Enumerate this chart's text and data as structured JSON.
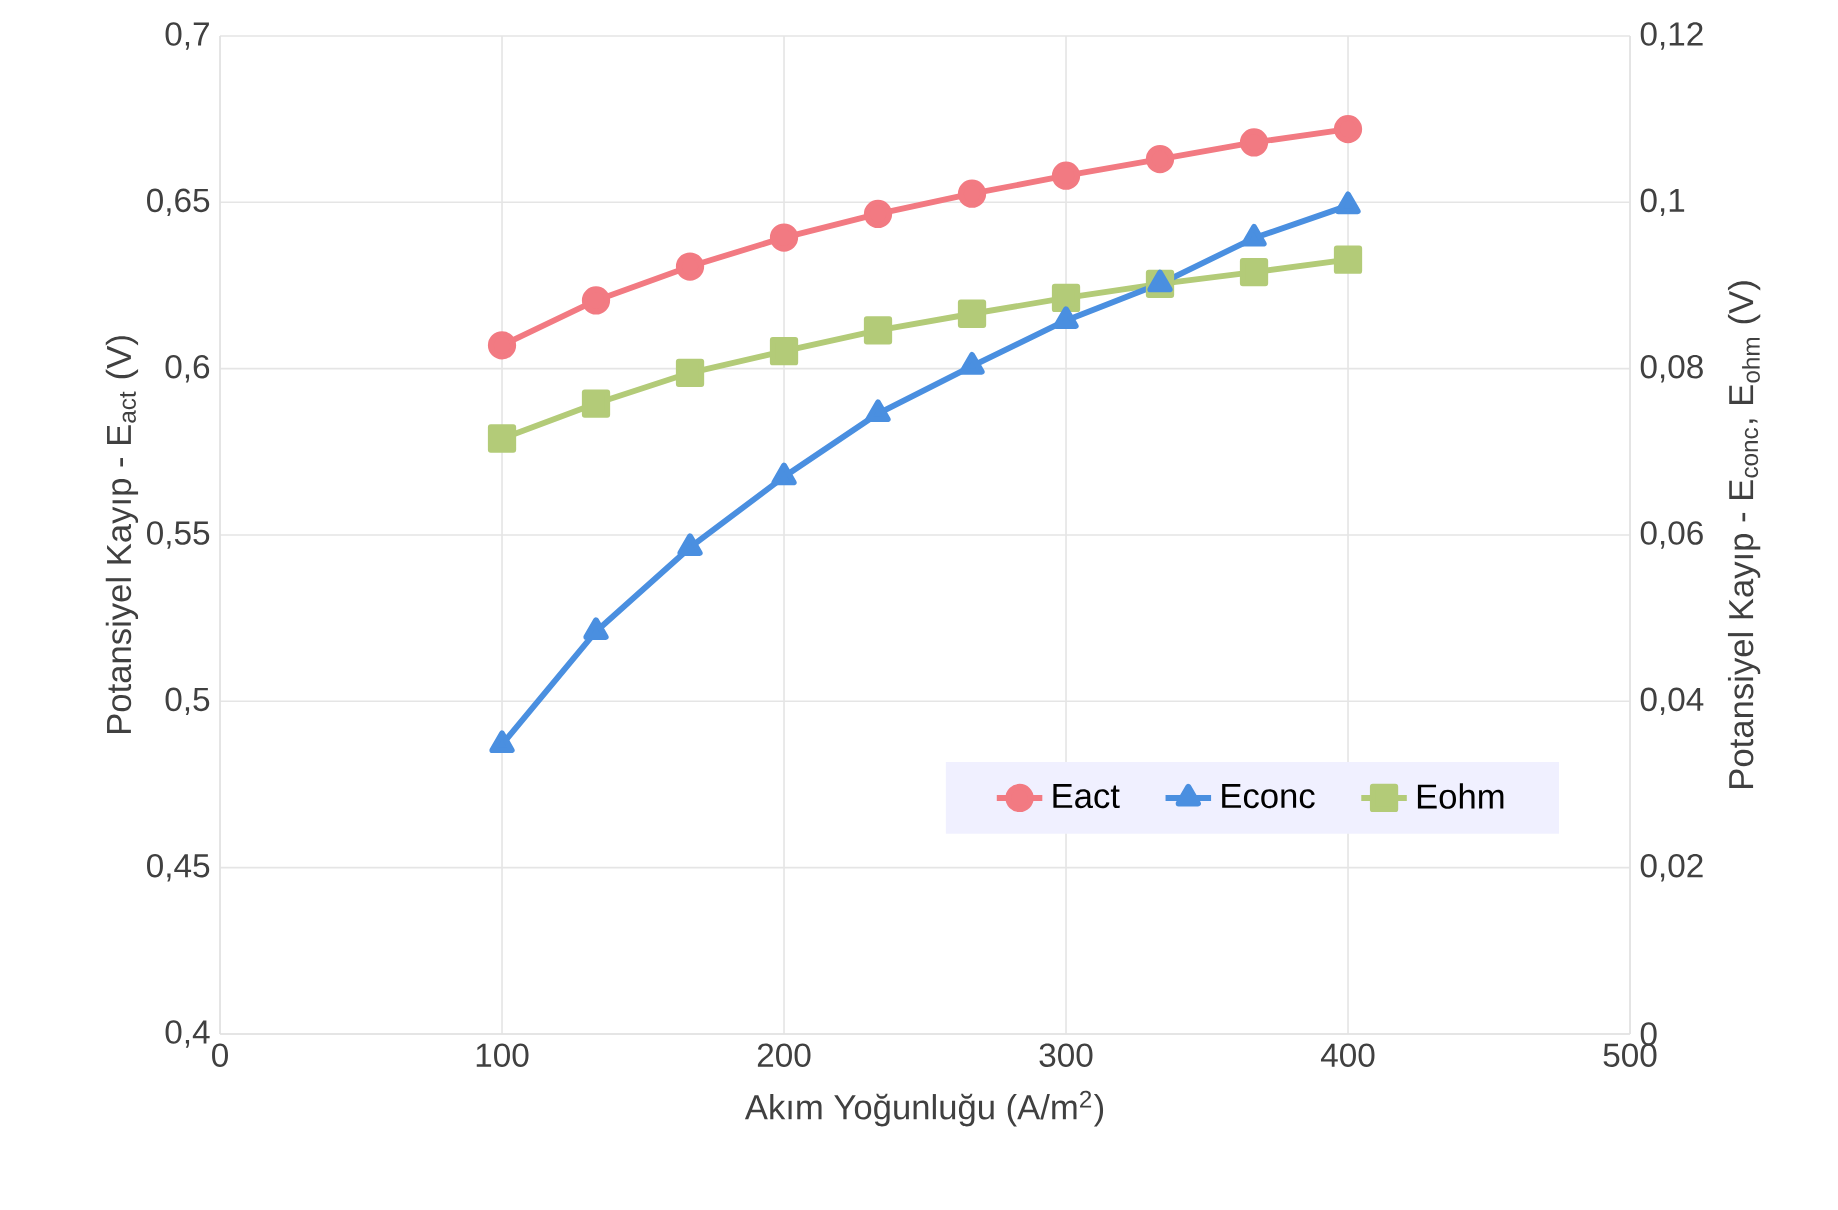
{
  "chart_data": {
    "type": "line",
    "xlabel": "Akım Yoğunluğu (A/m$^{2}$)",
    "ylabel": "Potansiyel Kayıp - E$_{act}$ (V)",
    "y2label": "Potansiyel Kayıp - E$_{conc}$, E$_{ohm}$ (V)",
    "x": [
      100,
      133.33,
      166.67,
      200,
      233.33,
      266.67,
      300,
      333.33,
      366.67,
      400
    ],
    "series": [
      {
        "name": "Eact",
        "color": "#f27a82",
        "marker": "circle",
        "values": [
          0.607,
          0.6205,
          0.6307,
          0.6394,
          0.6465,
          0.6526,
          0.658,
          0.663,
          0.668,
          0.672
        ]
      },
      {
        "name": "Econc",
        "color": "#4a8fe0",
        "marker": "triangle",
        "axis": "y2",
        "values": [
          0.0348,
          0.0484,
          0.0585,
          0.067,
          0.0746,
          0.0803,
          0.0858,
          0.0902,
          0.0957,
          0.0996
        ]
      },
      {
        "name": "Eohm",
        "color": "#b3cb78",
        "marker": "square",
        "axis": "y2",
        "values": [
          0.0716,
          0.0758,
          0.0795,
          0.0821,
          0.0846,
          0.0866,
          0.0885,
          0.0902,
          0.0916,
          0.0931
        ]
      }
    ],
    "xlim": [
      0,
      500
    ],
    "xticks": [
      0,
      100,
      200,
      300,
      400,
      500
    ],
    "ylim": [
      0.4,
      0.7
    ],
    "yticks": [
      {
        "value": 0.4,
        "label": "0,4"
      },
      {
        "value": 0.45,
        "label": "0,45"
      },
      {
        "value": 0.5,
        "label": "0,5"
      },
      {
        "value": 0.55,
        "label": "0,55"
      },
      {
        "value": 0.6,
        "label": "0,6"
      },
      {
        "value": 0.65,
        "label": "0,65"
      },
      {
        "value": 0.7,
        "label": "0,7"
      }
    ],
    "y2lim": [
      0,
      0.12
    ],
    "y2ticks": [
      0,
      {
        "value": 0.02,
        "label": "0,02"
      },
      {
        "value": 0.04,
        "label": "0,04"
      },
      {
        "value": 0.06,
        "label": "0,06"
      },
      {
        "value": 0.08,
        "label": "0,08"
      },
      {
        "value": 0.1,
        "label": "0,1"
      },
      {
        "value": 0.12,
        "label": "0,12"
      }
    ],
    "grid": true,
    "legend": "bottom right",
    "line_style": "solid"
  }
}
